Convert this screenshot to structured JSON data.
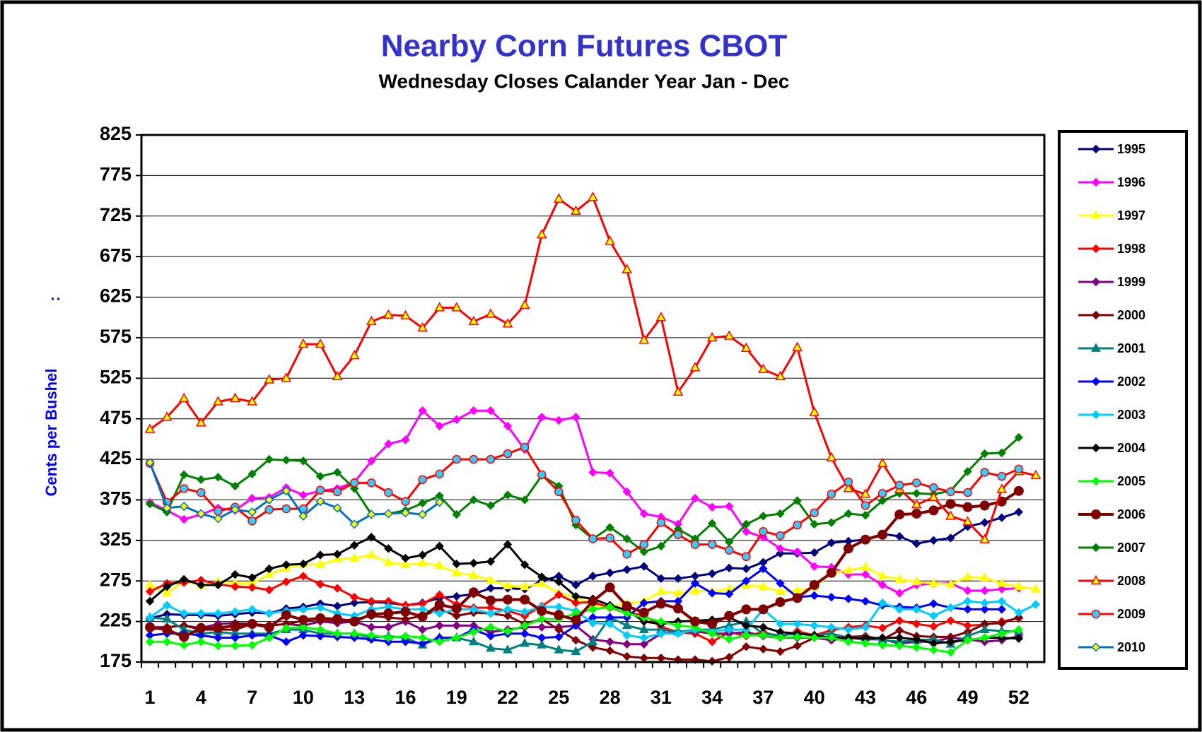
{
  "chart_data": {
    "type": "line",
    "title": "Nearby Corn Futures CBOT",
    "subtitle": "Wednesday Closes Calander Year Jan - Dec",
    "y_label": "Cents per Bushel",
    "y_label_note": ":",
    "categories": [
      1,
      null,
      null,
      4,
      null,
      null,
      7,
      null,
      null,
      10,
      null,
      null,
      13,
      null,
      null,
      16,
      null,
      null,
      19,
      null,
      null,
      22,
      null,
      null,
      25,
      null,
      null,
      28,
      null,
      null,
      31,
      null,
      null,
      34,
      null,
      null,
      37,
      null,
      null,
      40,
      null,
      null,
      43,
      null,
      null,
      46,
      null,
      null,
      49,
      null,
      null,
      52,
      null
    ],
    "ylim": [
      175,
      825
    ],
    "yticks": [
      175,
      225,
      275,
      325,
      375,
      425,
      475,
      525,
      575,
      625,
      675,
      725,
      775,
      825
    ],
    "grid": true,
    "legend": "right",
    "series": [
      {
        "name": "1995",
        "color": "#000080",
        "marker": "diamond",
        "values": [
          229,
          234,
          233,
          233,
          232,
          234,
          236,
          235,
          241,
          243,
          247,
          244,
          248,
          249,
          248,
          245,
          248,
          254,
          256,
          259,
          266,
          266,
          265,
          275,
          281,
          270,
          281,
          285,
          289,
          293,
          278,
          278,
          281,
          284,
          291,
          290,
          298,
          309,
          309,
          310,
          322,
          324,
          326,
          333,
          330,
          321,
          325,
          328,
          342,
          347,
          353,
          360,
          null
        ]
      },
      {
        "name": "1996",
        "color": "#ff00ff",
        "marker": "diamond",
        "values": [
          372,
          362,
          351,
          357,
          365,
          362,
          377,
          378,
          390,
          381,
          386,
          389,
          397,
          423,
          444,
          449,
          485,
          466,
          474,
          485,
          485,
          466,
          437,
          477,
          473,
          477,
          409,
          408,
          385,
          358,
          354,
          345,
          377,
          366,
          367,
          336,
          329,
          315,
          311,
          293,
          292,
          283,
          283,
          270,
          260,
          270,
          272,
          272,
          263,
          263,
          265,
          266,
          null
        ]
      },
      {
        "name": "1997",
        "color": "#ffff00",
        "marker": "triangle",
        "values": [
          270,
          260,
          275,
          270,
          274,
          272,
          272,
          283,
          291,
          296,
          295,
          302,
          303,
          307,
          298,
          295,
          297,
          294,
          285,
          282,
          276,
          269,
          268,
          272,
          260,
          255,
          245,
          244,
          247,
          250,
          262,
          260,
          263,
          262,
          265,
          270,
          268,
          262,
          263,
          267,
          285,
          288,
          292,
          281,
          277,
          274,
          272,
          271,
          280,
          279,
          272,
          268,
          265
        ]
      },
      {
        "name": "1998",
        "color": "#ff0000",
        "marker": "diamond",
        "values": [
          262,
          272,
          273,
          276,
          271,
          268,
          267,
          264,
          274,
          281,
          271,
          266,
          255,
          250,
          250,
          245,
          247,
          258,
          246,
          242,
          242,
          238,
          232,
          244,
          258,
          248,
          249,
          242,
          235,
          233,
          218,
          212,
          210,
          200,
          212,
          207,
          212,
          206,
          213,
          208,
          214,
          218,
          220,
          217,
          226,
          222,
          219,
          226,
          220,
          221,
          225,
          229,
          null
        ]
      },
      {
        "name": "1999",
        "color": "#800080",
        "marker": "diamond",
        "values": [
          218,
          218,
          220,
          217,
          222,
          223,
          222,
          220,
          222,
          220,
          225,
          223,
          225,
          218,
          218,
          225,
          215,
          220,
          220,
          220,
          212,
          215,
          218,
          218,
          218,
          220,
          203,
          200,
          197,
          197,
          210,
          212,
          213,
          210,
          210,
          212,
          207,
          205,
          205,
          205,
          202,
          205,
          203,
          203,
          198,
          200,
          200,
          205,
          203,
          200,
          202,
          207,
          null
        ]
      },
      {
        "name": "2000",
        "color": "#800000",
        "marker": "diamond",
        "values": [
          215,
          218,
          220,
          215,
          215,
          215,
          222,
          220,
          222,
          226,
          228,
          225,
          228,
          232,
          230,
          228,
          232,
          240,
          232,
          236,
          235,
          232,
          222,
          228,
          215,
          202,
          193,
          189,
          182,
          180,
          180,
          178,
          178,
          176,
          181,
          194,
          191,
          188,
          195,
          205,
          205,
          206,
          207,
          203,
          214,
          207,
          206,
          206,
          212,
          222,
          223,
          230,
          null
        ]
      },
      {
        "name": "2001",
        "color": "#008080",
        "marker": "triangle",
        "values": [
          230,
          228,
          215,
          210,
          212,
          210,
          210,
          210,
          215,
          215,
          210,
          210,
          210,
          205,
          207,
          205,
          196,
          205,
          205,
          200,
          192,
          190,
          198,
          196,
          190,
          188,
          200,
          230,
          220,
          215,
          215,
          212,
          215,
          215,
          220,
          225,
          210,
          208,
          210,
          208,
          210,
          205,
          205,
          202,
          200,
          202,
          203,
          197,
          207,
          215,
          213,
          213,
          null
        ]
      },
      {
        "name": "2002",
        "color": "#0000ff",
        "marker": "diamond",
        "values": [
          208,
          210,
          210,
          208,
          205,
          205,
          208,
          208,
          200,
          208,
          207,
          206,
          205,
          203,
          200,
          200,
          198,
          205,
          205,
          215,
          207,
          210,
          210,
          205,
          206,
          220,
          230,
          230,
          230,
          248,
          250,
          250,
          272,
          260,
          259,
          275,
          290,
          272,
          255,
          257,
          255,
          253,
          250,
          245,
          243,
          242,
          247,
          242,
          240,
          240,
          240,
          null,
          null
        ]
      },
      {
        "name": "2003",
        "color": "#00ccff",
        "marker": "diamond",
        "values": [
          230,
          245,
          235,
          235,
          235,
          237,
          240,
          235,
          238,
          240,
          242,
          235,
          232,
          240,
          243,
          240,
          240,
          235,
          240,
          240,
          235,
          240,
          237,
          243,
          243,
          238,
          223,
          222,
          208,
          205,
          210,
          210,
          215,
          213,
          215,
          215,
          240,
          222,
          222,
          220,
          218,
          215,
          218,
          248,
          240,
          240,
          232,
          242,
          250,
          248,
          250,
          236,
          246
        ]
      },
      {
        "name": "2004",
        "color": "#000000",
        "marker": "diamond",
        "values": [
          250,
          268,
          277,
          270,
          270,
          283,
          279,
          290,
          295,
          296,
          307,
          308,
          319,
          329,
          315,
          303,
          307,
          318,
          296,
          297,
          299,
          320,
          295,
          280,
          274,
          256,
          253,
          245,
          239,
          225,
          222,
          225,
          226,
          227,
          230,
          220,
          218,
          212,
          210,
          208,
          205,
          205,
          204,
          205,
          205,
          203,
          198,
          200,
          202,
          205,
          205,
          204,
          null
        ]
      },
      {
        "name": "2005",
        "color": "#00ff00",
        "marker": "diamond",
        "values": [
          200,
          200,
          196,
          200,
          195,
          195,
          196,
          205,
          217,
          218,
          215,
          210,
          210,
          208,
          205,
          207,
          205,
          200,
          205,
          212,
          218,
          213,
          220,
          228,
          228,
          235,
          240,
          243,
          235,
          230,
          225,
          220,
          218,
          210,
          203,
          208,
          208,
          205,
          206,
          205,
          205,
          200,
          198,
          196,
          195,
          193,
          190,
          187,
          202,
          205,
          210,
          215,
          null
        ]
      },
      {
        "name": "2006",
        "color": "#800000",
        "marker": "circle",
        "width": 4,
        "values": [
          218,
          215,
          206,
          217,
          217,
          220,
          222,
          218,
          233,
          227,
          229,
          228,
          225,
          234,
          235,
          237,
          231,
          246,
          241,
          261,
          251,
          252,
          252,
          238,
          233,
          227,
          250,
          267,
          244,
          236,
          247,
          241,
          225,
          222,
          232,
          240,
          240,
          249,
          254,
          270,
          285,
          315,
          326,
          332,
          357,
          358,
          362,
          370,
          366,
          368,
          373,
          386,
          null
        ]
      },
      {
        "name": "2007",
        "color": "#008000",
        "marker": "diamond",
        "values": [
          370,
          360,
          406,
          400,
          403,
          392,
          407,
          425,
          424,
          423,
          404,
          409,
          389,
          357,
          358,
          362,
          371,
          380,
          357,
          375,
          368,
          381,
          375,
          405,
          392,
          344,
          327,
          341,
          327,
          311,
          318,
          339,
          327,
          346,
          323,
          345,
          355,
          358,
          374,
          345,
          347,
          358,
          356,
          374,
          383,
          383,
          382,
          386,
          410,
          432,
          433,
          452,
          null
        ]
      },
      {
        "name": "2008",
        "color": "#ff0000",
        "marker": "triangle",
        "marker_fill": "#ffff00",
        "values": [
          462,
          477,
          500,
          470,
          496,
          500,
          496,
          523,
          525,
          567,
          567,
          527,
          553,
          595,
          603,
          602,
          587,
          612,
          612,
          595,
          604,
          592,
          615,
          702,
          746,
          731,
          748,
          694,
          659,
          572,
          600,
          508,
          538,
          575,
          577,
          562,
          536,
          527,
          563,
          483,
          427,
          389,
          382,
          420,
          388,
          369,
          378,
          355,
          348,
          326,
          388,
          410,
          405
        ]
      },
      {
        "name": "2009",
        "color": "#ff0000",
        "marker": "circle",
        "marker_fill": "#33ccff",
        "values": [
          420,
          372,
          389,
          384,
          361,
          366,
          349,
          363,
          364,
          364,
          387,
          385,
          396,
          396,
          384,
          373,
          400,
          407,
          425,
          425,
          425,
          432,
          440,
          406,
          385,
          350,
          327,
          328,
          308,
          320,
          347,
          332,
          320,
          320,
          313,
          305,
          336,
          331,
          344,
          359,
          382,
          397,
          368,
          383,
          393,
          396,
          390,
          385,
          384,
          409,
          404,
          413,
          null
        ]
      },
      {
        "name": "2010",
        "color": "#0070c0",
        "marker": "diamond",
        "marker_fill": "#ffff00",
        "values": [
          421,
          365,
          367,
          358,
          352,
          363,
          360,
          375,
          386,
          355,
          373,
          365,
          345,
          357,
          358,
          359,
          357,
          372,
          null,
          null,
          null,
          null,
          null,
          null,
          null,
          null,
          null,
          null,
          null,
          null,
          null,
          null,
          null,
          null,
          null,
          null,
          null,
          null,
          null,
          null,
          null,
          null,
          null,
          null,
          null,
          null,
          null,
          null,
          null,
          null,
          null,
          null,
          null
        ]
      }
    ]
  }
}
